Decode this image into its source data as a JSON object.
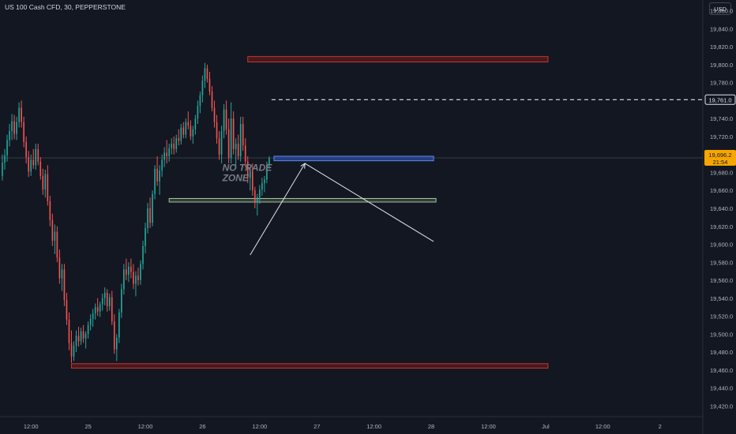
{
  "header": {
    "symbol_title": "US 100 Cash CFD, 30, PEPPERSTONE",
    "currency": "USD"
  },
  "colors": {
    "background": "#131722",
    "up": "#26a69a",
    "down": "#ef5350",
    "red_zone": "#7a1f1f",
    "blue_zone": "#2962ff",
    "green_zone": "#7fa37f",
    "last_price_bg": "#f7a600",
    "grid": "#1f2430"
  },
  "chart_data": {
    "type": "candlestick",
    "y_axis": {
      "ylim": [
        19408,
        19872
      ],
      "ticks": [
        "19,860.0",
        "19,840.0",
        "19,820.0",
        "19,800.0",
        "19,780.0",
        "19,740.0",
        "19,720.0",
        "19,700.0",
        "19,680.0",
        "19,660.0",
        "19,640.0",
        "19,620.0",
        "19,600.0",
        "19,580.0",
        "19,560.0",
        "19,540.0",
        "19,520.0",
        "19,500.0",
        "19,480.0",
        "19,460.0",
        "19,440.0",
        "19,420.0"
      ],
      "tick_values": [
        19860,
        19840,
        19820,
        19800,
        19780,
        19740,
        19720,
        19700,
        19680,
        19660,
        19640,
        19620,
        19600,
        19580,
        19560,
        19540,
        19520,
        19500,
        19480,
        19460,
        19440,
        19420
      ]
    },
    "x_axis": {
      "ticks": [
        "12:00",
        "25",
        "12:00",
        "26",
        "12:00",
        "27",
        "12:00",
        "28",
        "12:00",
        "Jul",
        "12:00",
        "2"
      ],
      "tick_bar_index": [
        12,
        36,
        60,
        84,
        108,
        132,
        156,
        180,
        204,
        228,
        252,
        276
      ],
      "bar_range": [
        0,
        295
      ]
    },
    "last_price": {
      "value": 19696.2,
      "label": "19,696.2",
      "countdown": "21:54"
    },
    "dashed_level": {
      "value": 19761.0,
      "label": "19,761.0",
      "from_bar": 113
    },
    "zones": [
      {
        "name": "upper-supply",
        "top": 19809,
        "bottom": 19803,
        "from_bar": 103,
        "to_bar": 229,
        "color": "red"
      },
      {
        "name": "lower-demand",
        "top": 19467,
        "bottom": 19462,
        "from_bar": 29,
        "to_bar": 229,
        "color": "red"
      },
      {
        "name": "blue-resistance",
        "top": 19698,
        "bottom": 19693,
        "from_bar": 114,
        "to_bar": 181,
        "color": "blue"
      },
      {
        "name": "green-support",
        "top": 19651,
        "bottom": 19647,
        "from_bar": 70,
        "to_bar": 182,
        "color": "green"
      }
    ],
    "lines": [
      {
        "name": "arrow-up-line",
        "from": [
          104,
          19588
        ],
        "to": [
          127,
          19690
        ],
        "arrow": true
      },
      {
        "name": "down-line",
        "from": [
          127,
          19690
        ],
        "to": [
          181,
          19603
        ],
        "arrow": false
      }
    ],
    "annotation": {
      "text_line1": "NO TRADE",
      "text_line2": "ZONE",
      "bar": 94,
      "price": 19680
    },
    "candles": [
      [
        19676,
        19700,
        19671,
        19691
      ],
      [
        19691,
        19706,
        19683,
        19699
      ],
      [
        19699,
        19722,
        19692,
        19716
      ],
      [
        19716,
        19734,
        19709,
        19726
      ],
      [
        19726,
        19745,
        19716,
        19737
      ],
      [
        19737,
        19744,
        19717,
        19723
      ],
      [
        19723,
        19742,
        19716,
        19736
      ],
      [
        19736,
        19758,
        19730,
        19752
      ],
      [
        19752,
        19760,
        19730,
        19736
      ],
      [
        19736,
        19742,
        19708,
        19714
      ],
      [
        19714,
        19720,
        19690,
        19697
      ],
      [
        19697,
        19704,
        19675,
        19681
      ],
      [
        19681,
        19700,
        19676,
        19694
      ],
      [
        19694,
        19706,
        19684,
        19688
      ],
      [
        19688,
        19712,
        19683,
        19706
      ],
      [
        19706,
        19712,
        19688,
        19692
      ],
      [
        19692,
        19697,
        19672,
        19676
      ],
      [
        19676,
        19684,
        19655,
        19661
      ],
      [
        19661,
        19683,
        19652,
        19678
      ],
      [
        19678,
        19688,
        19643,
        19648
      ],
      [
        19648,
        19654,
        19620,
        19627
      ],
      [
        19627,
        19634,
        19598,
        19604
      ],
      [
        19604,
        19622,
        19589,
        19614
      ],
      [
        19614,
        19620,
        19580,
        19585
      ],
      [
        19585,
        19594,
        19556,
        19562
      ],
      [
        19562,
        19578,
        19548,
        19572
      ],
      [
        19572,
        19578,
        19531,
        19538
      ],
      [
        19538,
        19546,
        19510,
        19516
      ],
      [
        19516,
        19524,
        19482,
        19490
      ],
      [
        19490,
        19504,
        19468,
        19475
      ],
      [
        19475,
        19492,
        19470,
        19487
      ],
      [
        19487,
        19504,
        19480,
        19498
      ],
      [
        19498,
        19508,
        19486,
        19492
      ],
      [
        19492,
        19507,
        19488,
        19503
      ],
      [
        19503,
        19510,
        19490,
        19495
      ],
      [
        19495,
        19503,
        19484,
        19500
      ],
      [
        19500,
        19514,
        19495,
        19510
      ],
      [
        19510,
        19522,
        19504,
        19517
      ],
      [
        19517,
        19528,
        19508,
        19523
      ],
      [
        19523,
        19534,
        19516,
        19530
      ],
      [
        19530,
        19540,
        19520,
        19525
      ],
      [
        19525,
        19536,
        19519,
        19533
      ],
      [
        19533,
        19545,
        19526,
        19540
      ],
      [
        19540,
        19552,
        19532,
        19546
      ],
      [
        19546,
        19550,
        19525,
        19531
      ],
      [
        19531,
        19545,
        19526,
        19541
      ],
      [
        19541,
        19548,
        19510,
        19514
      ],
      [
        19514,
        19522,
        19478,
        19483
      ],
      [
        19483,
        19500,
        19470,
        19496
      ],
      [
        19496,
        19528,
        19490,
        19524
      ],
      [
        19524,
        19556,
        19518,
        19550
      ],
      [
        19550,
        19578,
        19544,
        19572
      ],
      [
        19572,
        19584,
        19560,
        19566
      ],
      [
        19566,
        19580,
        19558,
        19575
      ],
      [
        19575,
        19584,
        19562,
        19569
      ],
      [
        19569,
        19578,
        19550,
        19556
      ],
      [
        19556,
        19570,
        19542,
        19565
      ],
      [
        19565,
        19574,
        19554,
        19560
      ],
      [
        19560,
        19582,
        19555,
        19578
      ],
      [
        19578,
        19604,
        19572,
        19598
      ],
      [
        19598,
        19624,
        19590,
        19618
      ],
      [
        19618,
        19646,
        19612,
        19640
      ],
      [
        19640,
        19652,
        19618,
        19624
      ],
      [
        19624,
        19660,
        19620,
        19656
      ],
      [
        19656,
        19688,
        19650,
        19684
      ],
      [
        19684,
        19698,
        19665,
        19670
      ],
      [
        19670,
        19688,
        19655,
        19682
      ],
      [
        19682,
        19700,
        19675,
        19694
      ],
      [
        19694,
        19708,
        19686,
        19702
      ],
      [
        19702,
        19716,
        19690,
        19698
      ],
      [
        19698,
        19712,
        19692,
        19707
      ],
      [
        19707,
        19718,
        19700,
        19712
      ],
      [
        19712,
        19720,
        19700,
        19706
      ],
      [
        19706,
        19722,
        19702,
        19718
      ],
      [
        19718,
        19728,
        19710,
        19715
      ],
      [
        19715,
        19734,
        19711,
        19730
      ],
      [
        19730,
        19736,
        19718,
        19722
      ],
      [
        19722,
        19740,
        19718,
        19736
      ],
      [
        19736,
        19748,
        19728,
        19732
      ],
      [
        19732,
        19738,
        19716,
        19720
      ],
      [
        19720,
        19732,
        19712,
        19728
      ],
      [
        19728,
        19744,
        19722,
        19740
      ],
      [
        19740,
        19760,
        19734,
        19754
      ],
      [
        19754,
        19770,
        19746,
        19766
      ],
      [
        19766,
        19788,
        19758,
        19782
      ],
      [
        19782,
        19802,
        19774,
        19796
      ],
      [
        19796,
        19800,
        19780,
        19784
      ],
      [
        19784,
        19792,
        19766,
        19770
      ],
      [
        19770,
        19776,
        19748,
        19752
      ],
      [
        19752,
        19760,
        19730,
        19736
      ],
      [
        19736,
        19744,
        19712,
        19718
      ],
      [
        19718,
        19726,
        19694,
        19700
      ],
      [
        19700,
        19732,
        19690,
        19726
      ],
      [
        19726,
        19756,
        19718,
        19750
      ],
      [
        19750,
        19760,
        19722,
        19728
      ],
      [
        19728,
        19740,
        19690,
        19696
      ],
      [
        19696,
        19758,
        19690,
        19740
      ],
      [
        19740,
        19748,
        19700,
        19706
      ],
      [
        19706,
        19718,
        19688,
        19712
      ],
      [
        19712,
        19722,
        19694,
        19698
      ],
      [
        19698,
        19742,
        19692,
        19734
      ],
      [
        19734,
        19742,
        19704,
        19710
      ],
      [
        19710,
        19718,
        19686,
        19692
      ],
      [
        19692,
        19698,
        19668,
        19674
      ],
      [
        19674,
        19686,
        19660,
        19681
      ],
      [
        19681,
        19690,
        19654,
        19660
      ],
      [
        19660,
        19664,
        19640,
        19646
      ],
      [
        19646,
        19656,
        19632,
        19652
      ],
      [
        19652,
        19666,
        19645,
        19661
      ],
      [
        19661,
        19674,
        19654,
        19668
      ],
      [
        19668,
        19676,
        19658,
        19672
      ],
      [
        19672,
        19692,
        19668,
        19688
      ],
      [
        19688,
        19698,
        19684,
        19696
      ]
    ]
  }
}
